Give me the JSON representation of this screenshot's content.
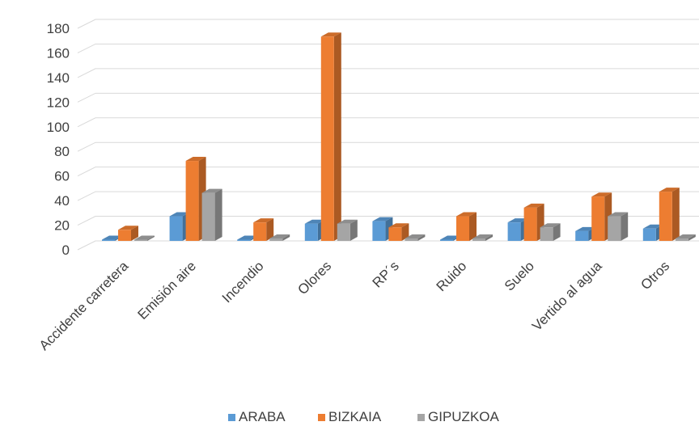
{
  "chart_data": {
    "type": "bar",
    "categories": [
      "Accidente carretera",
      "Emisión aire",
      "Incendio",
      "Olores",
      "RP´s",
      "Ruido",
      "Suelo",
      "Vertido al agua",
      "Otros"
    ],
    "series": [
      {
        "name": "ARABA",
        "color": "#5b9bd5",
        "values": [
          1,
          20,
          1,
          14,
          16,
          0,
          15,
          8,
          10
        ]
      },
      {
        "name": "BIZKAIA",
        "color": "#ed7d31",
        "values": [
          9,
          65,
          15,
          166,
          11,
          20,
          27,
          36,
          40
        ]
      },
      {
        "name": "GIPUZKOA",
        "color": "#a5a5a5",
        "values": [
          0,
          39,
          2,
          14,
          2,
          2,
          11,
          20,
          2
        ]
      }
    ],
    "yticks": [
      "0",
      "20",
      "40",
      "60",
      "80",
      "100",
      "120",
      "140",
      "160",
      "180"
    ],
    "ylim": [
      0,
      180
    ],
    "legend_position": "bottom",
    "grid": true,
    "style": "3d-clustered-column"
  }
}
